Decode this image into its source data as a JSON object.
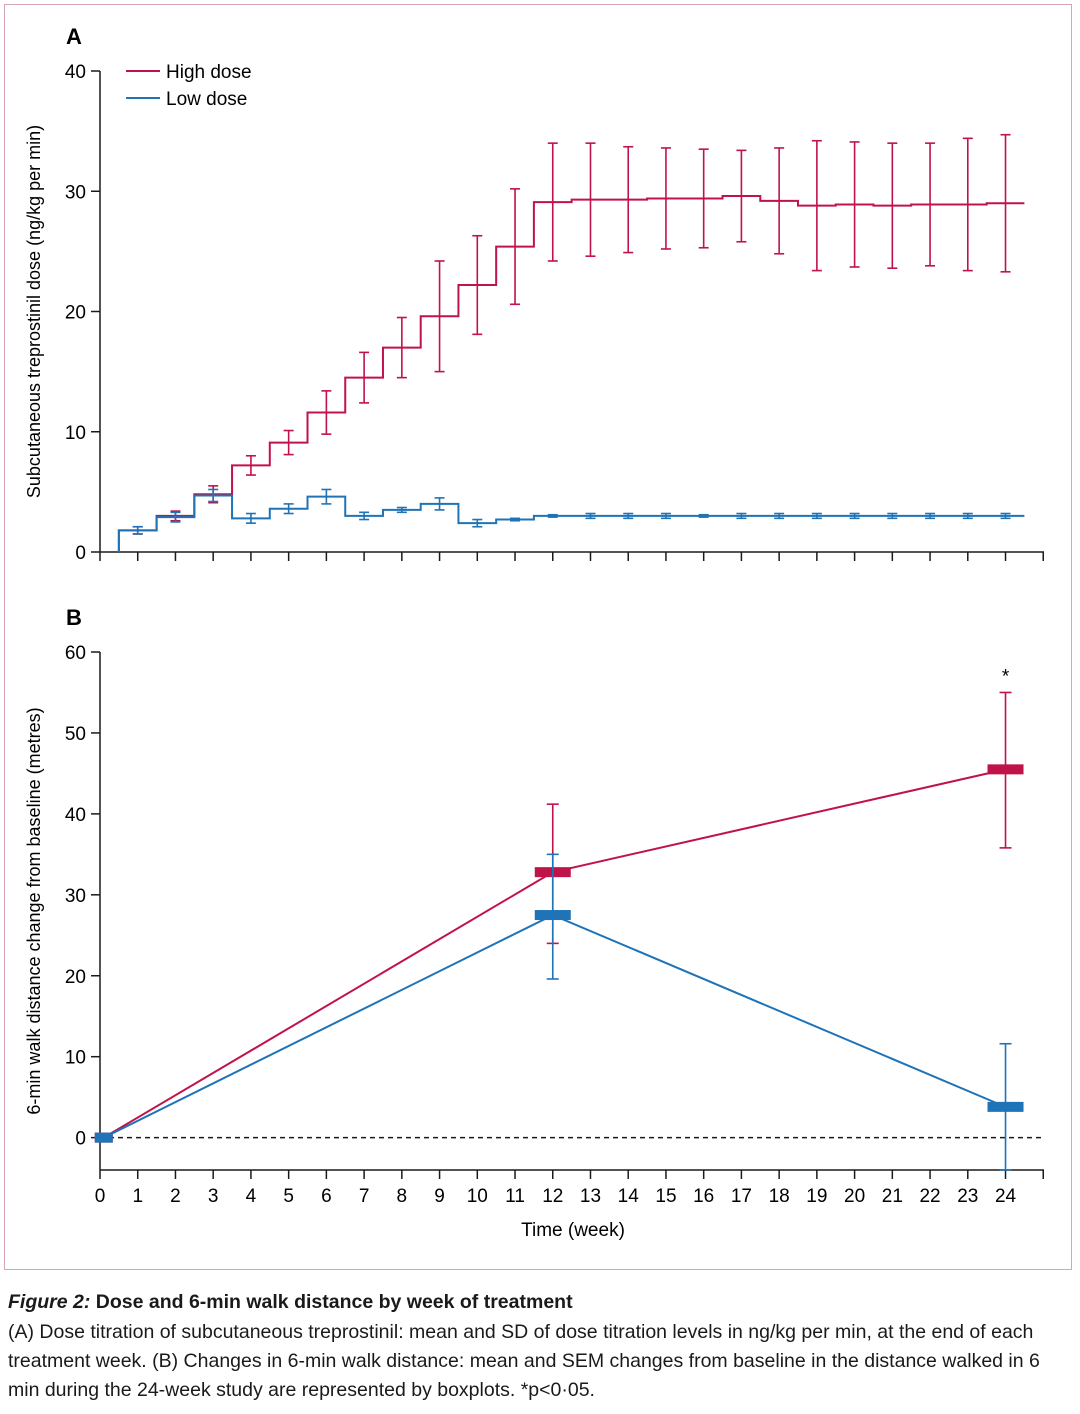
{
  "colors": {
    "high": "#c0134a",
    "low": "#1f73b7",
    "axis": "#1a1a1a",
    "frame": "#d9a3b8"
  },
  "chart_data": [
    {
      "panel": "A",
      "type": "line",
      "style": "step",
      "ylabel": "Subcutaneous treprostinil dose (ng/kg per min)",
      "ylim": [
        0,
        40
      ],
      "yticks": [
        0,
        10,
        20,
        30,
        40
      ],
      "xlim": [
        0,
        25
      ],
      "x_step_start": 0.5,
      "legend": {
        "position": "top-left",
        "entries": [
          "High dose",
          "Low dose"
        ]
      },
      "series": [
        {
          "name": "High dose",
          "color": "#c0134a",
          "x": [
            1,
            2,
            3,
            4,
            5,
            6,
            7,
            8,
            9,
            10,
            11,
            12,
            13,
            14,
            15,
            16,
            17,
            18,
            19,
            20,
            21,
            22,
            23,
            24
          ],
          "mean": [
            1.8,
            3.0,
            4.8,
            7.2,
            9.1,
            11.6,
            14.5,
            17.0,
            19.6,
            22.2,
            25.4,
            29.1,
            29.3,
            29.3,
            29.4,
            29.4,
            29.6,
            29.2,
            28.8,
            28.9,
            28.8,
            28.9,
            28.9,
            29.0
          ],
          "sd": [
            0.3,
            0.4,
            0.7,
            0.8,
            1.0,
            1.8,
            2.1,
            2.5,
            4.6,
            4.1,
            4.8,
            4.9,
            4.7,
            4.4,
            4.2,
            4.1,
            3.8,
            4.4,
            5.4,
            5.2,
            5.2,
            5.1,
            5.5,
            5.7
          ]
        },
        {
          "name": "Low dose",
          "color": "#1f73b7",
          "x": [
            1,
            2,
            3,
            4,
            5,
            6,
            7,
            8,
            9,
            10,
            11,
            12,
            13,
            14,
            15,
            16,
            17,
            18,
            19,
            20,
            21,
            22,
            23,
            24
          ],
          "mean": [
            1.8,
            2.9,
            4.7,
            2.8,
            3.6,
            4.6,
            3.0,
            3.5,
            4.0,
            2.4,
            2.7,
            3.0,
            3.0,
            3.0,
            3.0,
            3.0,
            3.0,
            3.0,
            3.0,
            3.0,
            3.0,
            3.0,
            3.0,
            3.0
          ],
          "sd": [
            0.3,
            0.4,
            0.5,
            0.4,
            0.4,
            0.6,
            0.3,
            0.2,
            0.5,
            0.3,
            0.1,
            0.1,
            0.2,
            0.2,
            0.2,
            0.1,
            0.2,
            0.2,
            0.2,
            0.2,
            0.2,
            0.2,
            0.2,
            0.2
          ]
        }
      ]
    },
    {
      "panel": "B",
      "type": "line",
      "style": "boxplot-mean-sem",
      "ylabel": "6-min walk distance change from baseline (metres)",
      "xlabel": "Time (week)",
      "ylim": [
        -4,
        60
      ],
      "yticks": [
        0,
        10,
        20,
        30,
        40,
        50,
        60
      ],
      "xlim": [
        0,
        25
      ],
      "xticks": [
        0,
        1,
        2,
        3,
        4,
        5,
        6,
        7,
        8,
        9,
        10,
        11,
        12,
        13,
        14,
        15,
        16,
        17,
        18,
        19,
        20,
        21,
        22,
        23,
        24
      ],
      "baseline_reference": 0,
      "annotation": {
        "text": "*",
        "x": 24,
        "y": 57
      },
      "series": [
        {
          "name": "High dose",
          "color": "#c0134a",
          "x": [
            0.1,
            12,
            24
          ],
          "mean": [
            0,
            32.8,
            45.5
          ],
          "err_low": [
            0,
            24.0,
            35.8
          ],
          "err_high": [
            0,
            41.2,
            55.0
          ]
        },
        {
          "name": "Low dose",
          "color": "#1f73b7",
          "x": [
            0.1,
            12,
            24
          ],
          "mean": [
            0,
            27.5,
            3.8
          ],
          "err_low": [
            0,
            19.6,
            -4.0
          ],
          "err_high": [
            0,
            35.0,
            11.6
          ]
        }
      ]
    }
  ],
  "caption": {
    "figure_number": "Figure 2:",
    "title": "Dose and 6-min walk distance by week of treatment",
    "text": "(A) Dose titration of subcutaneous treprostinil: mean and SD of dose titration levels in ng/kg per min, at the end of each treatment week. (B) Changes in 6-min walk distance: mean and SEM changes from baseline in the distance walked in 6 min during the 24-week study are represented by boxplots. *p<0·05."
  }
}
